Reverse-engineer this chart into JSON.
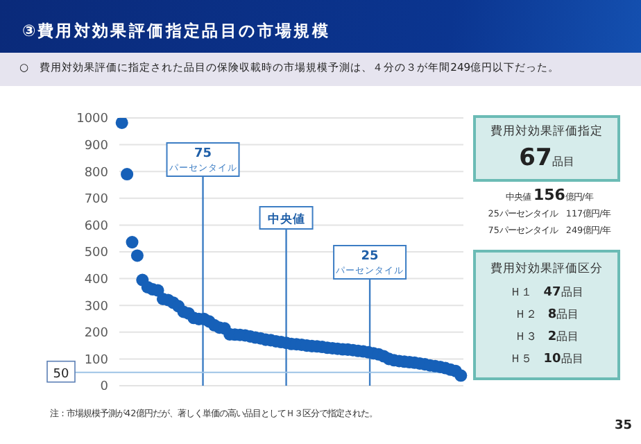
{
  "chart_data": {
    "type": "scatter",
    "title": "③費用対効果評価指定品目の市場規模",
    "subtitle": "○　費用対効果評価に指定された品目の保険収載時の市場規模予測は、４分の３が年間249億円以下だった。",
    "categories": [
      null,
      null,
      null,
      null,
      null,
      null,
      null,
      null,
      null,
      null,
      null,
      null,
      null,
      null,
      null,
      null,
      null,
      null,
      null,
      null,
      null,
      null,
      null,
      null,
      null,
      null,
      null,
      null,
      null,
      null,
      null,
      null,
      null,
      null,
      null,
      null,
      null,
      null,
      null,
      null,
      null,
      null,
      null,
      null,
      null,
      null,
      null,
      null,
      null,
      null,
      null,
      null,
      null,
      null,
      null,
      null,
      null,
      null,
      null,
      null,
      null,
      null,
      null,
      null,
      null,
      null,
      null
    ],
    "series": [
      {
        "color": "#1660b8",
        "values": [
          982,
          790,
          536,
          486,
          395,
          368,
          360,
          356,
          324,
          320,
          310,
          297,
          276,
          270,
          253,
          249,
          249,
          240,
          226,
          217,
          214,
          192,
          191,
          190,
          188,
          184,
          180,
          177,
          172,
          170,
          166,
          163,
          160,
          156,
          155,
          153,
          150,
          148,
          147,
          145,
          142,
          140,
          138,
          136,
          135,
          133,
          130,
          128,
          125,
          121,
          117,
          110,
          100,
          95,
          92,
          90,
          88,
          86,
          83,
          80,
          76,
          73,
          70,
          66,
          60,
          55,
          38
        ]
      }
    ],
    "ylim": [
      0,
      1000
    ],
    "yticks": [
      0,
      100,
      200,
      300,
      400,
      500,
      600,
      700,
      800,
      900,
      1000
    ],
    "grid": "y",
    "marker": "circle",
    "ref_lines": [
      {
        "axis": "y",
        "value": 50,
        "label": "50",
        "color": "#9dc3e6"
      }
    ],
    "annotations": [
      "費用対効果評価指定",
      "67品目",
      "中央値 156億円/年",
      "25パーセンタイル　117億円/年",
      "75パーセンタイル　249億円/年",
      "費用対効果評価区分",
      "Ｈ１　47品目",
      "Ｈ２　8品目",
      "Ｈ３　2品目",
      "Ｈ５　10品目",
      "注：市場規模予測が42億円だが、著しく単価の高い品目としてＨ３区分で指定された。",
      "35",
      "75 パーセンタイル",
      "中央値",
      "25 パーセンタイル"
    ]
  }
}
